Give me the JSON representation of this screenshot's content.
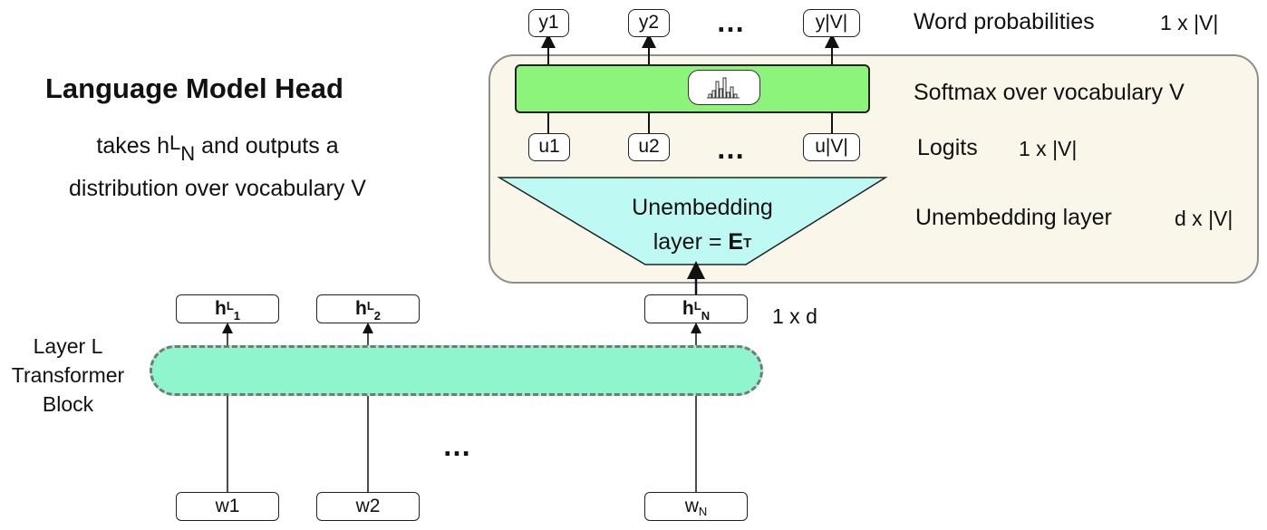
{
  "title": "Language Model Head",
  "subtitle": {
    "prefix": "takes h",
    "sup": "L",
    "sub": "N",
    "suffix": " and outputs a",
    "line2": "distribution over vocabulary V"
  },
  "outputs": [
    "y1",
    "y2",
    "y|V|"
  ],
  "logits": [
    "u1",
    "u2",
    "u|V|"
  ],
  "hidden_states": [
    {
      "base": "h",
      "sup": "L",
      "sub": "1"
    },
    {
      "base": "h",
      "sup": "L",
      "sub": "2"
    },
    {
      "base": "h",
      "sup": "L",
      "sub": "N"
    }
  ],
  "inputs": [
    {
      "base": "w1",
      "sub": ""
    },
    {
      "base": "w2",
      "sub": ""
    },
    {
      "base": "w",
      "sub": "N"
    }
  ],
  "ellipsis": "…",
  "unembedding": {
    "line1": "Unembedding",
    "line2_prefix": "layer = ",
    "line2_bold": "E",
    "line2_sup": "T"
  },
  "right_labels": {
    "word_probabilities": "Word probabilities",
    "word_probabilities_dim": "1 x |V|",
    "softmax": "Softmax over vocabulary V",
    "logits": "Logits",
    "logits_dim": "1 x |V|",
    "unembedding_layer": "Unembedding layer",
    "unembedding_dim": "d x |V|",
    "hidden_dim": "1 x d"
  },
  "block_label": [
    "Layer L",
    "Transformer",
    "Block"
  ],
  "colors": {
    "softmax": "#8cf47a",
    "unembedding": "#bff9f3",
    "transformer_block": "#8ef5cc",
    "panel": "#fbf6ea"
  }
}
